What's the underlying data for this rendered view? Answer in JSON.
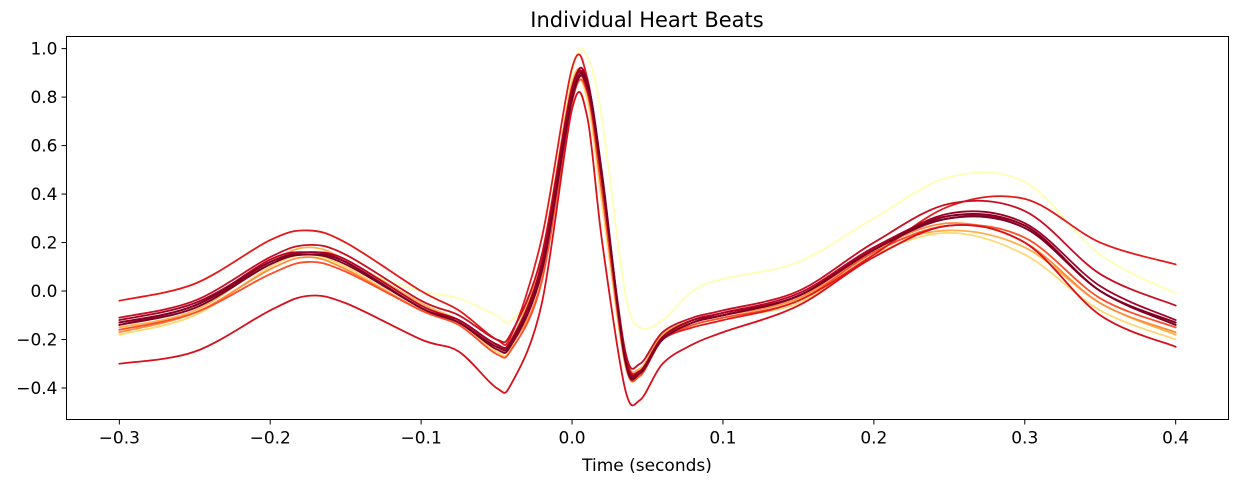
{
  "chart_data": {
    "type": "line",
    "title": "Individual Heart Beats",
    "xlabel": "Time (seconds)",
    "ylabel": "",
    "xlim": [
      -0.335,
      0.435
    ],
    "ylim": [
      -0.53,
      1.05
    ],
    "grid": false,
    "xticks": [
      -0.3,
      -0.2,
      -0.1,
      0.0,
      0.1,
      0.2,
      0.3,
      0.4
    ],
    "xtick_labels": [
      "−0.3",
      "−0.2",
      "−0.1",
      "0.0",
      "0.1",
      "0.2",
      "0.3",
      "0.4"
    ],
    "yticks": [
      -0.4,
      -0.2,
      0.0,
      0.2,
      0.4,
      0.6,
      0.8,
      1.0
    ],
    "ytick_labels": [
      "−0.4",
      "−0.2",
      "0.0",
      "0.2",
      "0.4",
      "0.6",
      "0.8",
      "1.0"
    ],
    "x": [
      -0.3,
      -0.25,
      -0.2,
      -0.175,
      -0.15,
      -0.1,
      -0.075,
      -0.05,
      -0.04,
      -0.02,
      0.0,
      0.01,
      0.02,
      0.035,
      0.045,
      0.06,
      0.08,
      0.1,
      0.15,
      0.2,
      0.25,
      0.3,
      0.35,
      0.4
    ],
    "series": [
      {
        "color": "#ffffb2",
        "values": [
          -0.18,
          -0.1,
          0.1,
          0.15,
          0.1,
          0.0,
          -0.03,
          -0.1,
          -0.12,
          0.1,
          0.9,
          0.97,
          0.7,
          0.0,
          -0.15,
          -0.12,
          0.0,
          0.05,
          0.12,
          0.3,
          0.47,
          0.45,
          0.15,
          -0.01
        ]
      },
      {
        "color": "#fed976",
        "values": [
          -0.18,
          -0.1,
          0.1,
          0.15,
          0.1,
          -0.08,
          -0.13,
          -0.25,
          -0.23,
          0.1,
          0.82,
          0.79,
          0.35,
          -0.3,
          -0.35,
          -0.2,
          -0.14,
          -0.11,
          -0.05,
          0.15,
          0.24,
          0.15,
          -0.08,
          -0.2
        ]
      },
      {
        "color": "#feb24c",
        "values": [
          -0.15,
          -0.08,
          0.12,
          0.18,
          0.13,
          -0.05,
          -0.12,
          -0.22,
          -0.2,
          0.15,
          0.86,
          0.82,
          0.4,
          -0.25,
          -0.32,
          -0.18,
          -0.12,
          -0.1,
          -0.03,
          0.17,
          0.25,
          0.18,
          -0.05,
          -0.18
        ]
      },
      {
        "color": "#fd8d3c",
        "values": [
          -0.17,
          -0.09,
          0.09,
          0.14,
          0.09,
          -0.08,
          -0.13,
          -0.24,
          -0.22,
          0.05,
          0.8,
          0.83,
          0.4,
          -0.28,
          -0.34,
          -0.19,
          -0.13,
          -0.1,
          -0.03,
          0.17,
          0.28,
          0.2,
          -0.05,
          -0.17
        ]
      },
      {
        "color": "#fc4e2a",
        "values": [
          -0.16,
          -0.09,
          0.07,
          0.12,
          0.08,
          -0.08,
          -0.14,
          -0.26,
          -0.24,
          0.04,
          0.78,
          0.82,
          0.4,
          -0.29,
          -0.35,
          -0.2,
          -0.14,
          -0.11,
          -0.04,
          0.16,
          0.27,
          0.22,
          -0.03,
          -0.15
        ]
      },
      {
        "color": "#e31a1c",
        "values": [
          -0.04,
          0.03,
          0.21,
          0.25,
          0.2,
          0.0,
          -0.08,
          -0.2,
          -0.18,
          0.22,
          0.92,
          0.88,
          0.45,
          -0.25,
          -0.33,
          -0.2,
          -0.15,
          -0.12,
          -0.04,
          0.15,
          0.35,
          0.38,
          0.2,
          0.11
        ]
      },
      {
        "color": "#d7101c",
        "values": [
          -0.3,
          -0.25,
          -0.08,
          -0.02,
          -0.05,
          -0.2,
          -0.25,
          -0.4,
          -0.38,
          -0.05,
          0.75,
          0.72,
          0.2,
          -0.4,
          -0.45,
          -0.3,
          -0.22,
          -0.17,
          -0.06,
          0.14,
          0.27,
          0.2,
          -0.1,
          -0.23
        ]
      },
      {
        "color": "#c80e22",
        "values": [
          -0.11,
          -0.04,
          0.14,
          0.19,
          0.15,
          -0.04,
          -0.1,
          -0.2,
          -0.17,
          0.15,
          0.84,
          0.83,
          0.45,
          -0.24,
          -0.3,
          -0.17,
          -0.11,
          -0.08,
          0.0,
          0.2,
          0.36,
          0.33,
          0.07,
          -0.06
        ]
      },
      {
        "color": "#bd0026",
        "values": [
          -0.13,
          -0.06,
          0.13,
          0.16,
          0.13,
          -0.06,
          -0.12,
          -0.22,
          -0.2,
          0.12,
          0.84,
          0.84,
          0.45,
          -0.26,
          -0.33,
          -0.19,
          -0.12,
          -0.09,
          -0.01,
          0.18,
          0.31,
          0.26,
          0.0,
          -0.13
        ]
      },
      {
        "color": "#b00026",
        "values": [
          -0.14,
          -0.06,
          0.11,
          0.16,
          0.12,
          -0.07,
          -0.13,
          -0.23,
          -0.21,
          0.1,
          0.82,
          0.86,
          0.47,
          -0.27,
          -0.34,
          -0.19,
          -0.12,
          -0.09,
          -0.02,
          0.18,
          0.3,
          0.27,
          0.0,
          -0.14
        ]
      },
      {
        "color": "#a00026",
        "values": [
          -0.12,
          -0.05,
          0.12,
          0.16,
          0.12,
          -0.07,
          -0.12,
          -0.22,
          -0.2,
          0.11,
          0.83,
          0.87,
          0.45,
          -0.27,
          -0.33,
          -0.19,
          -0.12,
          -0.1,
          -0.02,
          0.17,
          0.32,
          0.28,
          0.02,
          -0.12
        ]
      },
      {
        "color": "#800026",
        "values": [
          -0.13,
          -0.06,
          0.12,
          0.15,
          0.12,
          -0.07,
          -0.13,
          -0.23,
          -0.21,
          0.09,
          0.8,
          0.86,
          0.48,
          -0.27,
          -0.34,
          -0.2,
          -0.13,
          -0.1,
          -0.02,
          0.17,
          0.31,
          0.27,
          0.0,
          -0.13
        ]
      },
      {
        "color": "#7a0026",
        "values": [
          -0.14,
          -0.07,
          0.11,
          0.15,
          0.11,
          -0.07,
          -0.13,
          -0.24,
          -0.22,
          0.08,
          0.79,
          0.85,
          0.47,
          -0.28,
          -0.34,
          -0.2,
          -0.13,
          -0.1,
          -0.02,
          0.17,
          0.3,
          0.26,
          0.0,
          -0.14
        ]
      }
    ]
  }
}
